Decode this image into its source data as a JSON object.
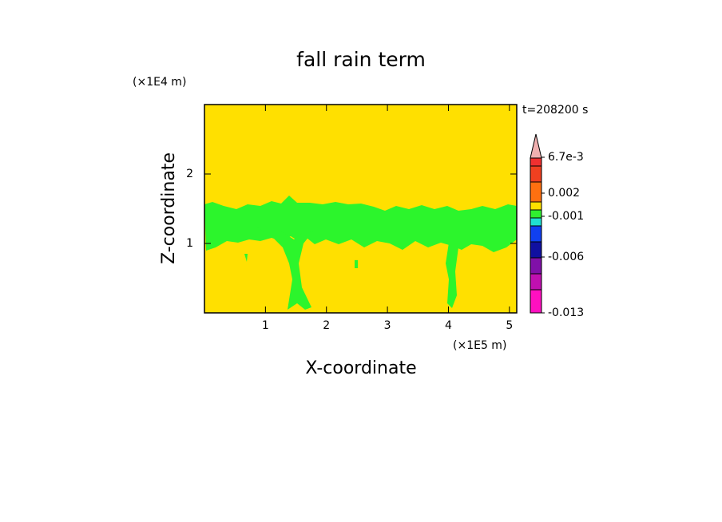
{
  "chart_data": {
    "type": "contour",
    "title": "fall rain term",
    "x_label": "X-coordinate",
    "y_label": "Z-coordinate",
    "x_unit": "(×1E5 m)",
    "y_unit": "(×1E4 m)",
    "annotation": "t=208200 s",
    "xlim": [
      0,
      5.12
    ],
    "ylim": [
      0,
      3
    ],
    "xticks": [
      1,
      2,
      3,
      4,
      5
    ],
    "yticks": [
      1,
      2
    ],
    "background_color": "#ffe000",
    "field_color": "#2cf52c",
    "colorbar": {
      "colors": [
        "#ff10c0",
        "#c010b0",
        "#8010a8",
        "#1010a0",
        "#1040f0",
        "#20e0d0",
        "#30f030",
        "#ffe000",
        "#ff7010",
        "#f04020",
        "#f03030"
      ],
      "extend_color": "#f0b0b0",
      "ticks": [
        -0.013,
        -0.006,
        -0.001,
        0.002,
        {
          "value": 0.0067,
          "label": "6.7e-3"
        }
      ]
    }
  }
}
